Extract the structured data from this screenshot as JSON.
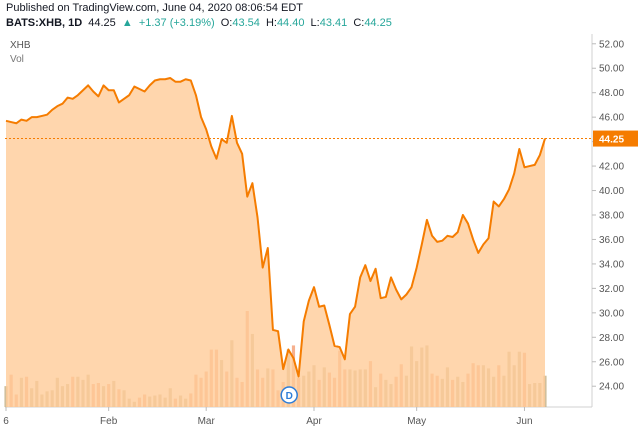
{
  "header": {
    "published": "Published on TradingView.com, June 04, 2020 08:06:54 EDT",
    "symbol": "BATS:XHB, 1D",
    "last": "44.25",
    "change": "+1.37 (+3.19%)",
    "o_label": "O:",
    "o_value": "43.54",
    "h_label": "H:",
    "h_value": "44.40",
    "l_label": "L:",
    "l_value": "43.41",
    "c_label": "C:",
    "c_value": "44.25"
  },
  "legend": {
    "symbol": "XHB",
    "volume": "Vol"
  },
  "colors": {
    "line": "#f57c00",
    "area": "#ffcc99",
    "price_tag": "#f57c00",
    "vol_up": "#c8b48c",
    "vol_down": "#f4a27a",
    "axis_text": "#555555",
    "grid": "#eeeeee"
  },
  "chart_data": {
    "type": "area",
    "series": [
      {
        "values": [
          45.7,
          45.6,
          45.5,
          45.8,
          45.7,
          46,
          46,
          46.1,
          46.2,
          46.6,
          46.9,
          47.1,
          47.6,
          47.5,
          47.8,
          48.2,
          48.6,
          48.1,
          47.7,
          48.6,
          48.2,
          48.2,
          47.2,
          47.5,
          47.8,
          48.5,
          48.3,
          48.1,
          48.6,
          49,
          49.1,
          49.1,
          49.2,
          48.9,
          48.9,
          49.1,
          49,
          47.8,
          46,
          45,
          43.6,
          42.6,
          44.2,
          43.9,
          46.1,
          43.9,
          43,
          39.5,
          40.6,
          37.8,
          33.7,
          35.3,
          28.6,
          28.5,
          25.4,
          27,
          26.3,
          24.8,
          29.3,
          31,
          32.1,
          30.5,
          30.6,
          29,
          27.3,
          27.2,
          26.2,
          29.9,
          30.5,
          32.9,
          33.9,
          32.6,
          33.6,
          31.2,
          31.3,
          32.9,
          31.9,
          31.1,
          31.5,
          32.1,
          33.7,
          35.6,
          37.6,
          36.3,
          35.8,
          35.9,
          36.3,
          36.2,
          36.6,
          38,
          37.3,
          36,
          34.9,
          35.6,
          36.1,
          39.1,
          38.7,
          39.3,
          40.1,
          41.4,
          43.4,
          41.9,
          42,
          42.1,
          42.9,
          44.25
        ]
      }
    ],
    "volume": [
      2.0,
      3.1,
      1.2,
      2.8,
      2.9,
      1.8,
      2.5,
      1.2,
      1.5,
      1.6,
      2.8,
      2.0,
      2.2,
      2.9,
      2.9,
      2.6,
      3.1,
      2.2,
      2.3,
      2.0,
      2.2,
      2.5,
      1.7,
      1.6,
      0.8,
      0.5,
      0.9,
      1.2,
      1.0,
      1.1,
      1.2,
      0.9,
      1.8,
      0.8,
      1.1,
      0.8,
      1.3,
      3.1,
      2.8,
      3.4,
      5.5,
      5.5,
      4.5,
      3.4,
      6.4,
      2.8,
      2.4,
      9.2,
      7.0,
      3.6,
      2.8,
      3.7,
      3.6,
      1.6,
      2.4,
      5.5,
      5.9,
      2.8,
      3.0,
      3.4,
      4.0,
      2.6,
      3.8,
      3.3,
      2.8,
      5.4,
      3.6,
      3.6,
      3.5,
      3.6,
      3.6,
      4.4,
      1.9,
      3.2,
      2.6,
      2.2,
      2.9,
      4.1,
      3.0,
      5.8,
      4.4,
      5.7,
      5.9,
      3.2,
      3.0,
      2.7,
      3.8,
      2.6,
      2.9,
      2.4,
      3.2,
      4.2,
      4.0,
      4.0,
      3.7,
      2.9,
      4.0,
      3.0,
      5.3,
      4.0,
      5.3,
      5.2,
      2.2,
      2.3,
      2.3,
      3.0
    ],
    "y_ticks": [
      "52.00",
      "50.00",
      "48.00",
      "46.00",
      "44.00",
      "42.00",
      "40.00",
      "38.00",
      "36.00",
      "34.00",
      "32.00",
      "30.00",
      "28.00",
      "26.00",
      "24.00"
    ],
    "ylim": [
      22.3,
      52.8
    ],
    "x_ticks": [
      {
        "label": "6",
        "index": 0
      },
      {
        "label": "Feb",
        "index": 20
      },
      {
        "label": "Mar",
        "index": 39
      },
      {
        "label": "Apr",
        "index": 60
      },
      {
        "label": "May",
        "index": 80
      },
      {
        "label": "Jun",
        "index": 101
      }
    ],
    "last_value": 44.25,
    "last_label": "44.25",
    "dividend_marker": "D",
    "dividend_index": 54,
    "grid": false,
    "legend": "top-left"
  }
}
